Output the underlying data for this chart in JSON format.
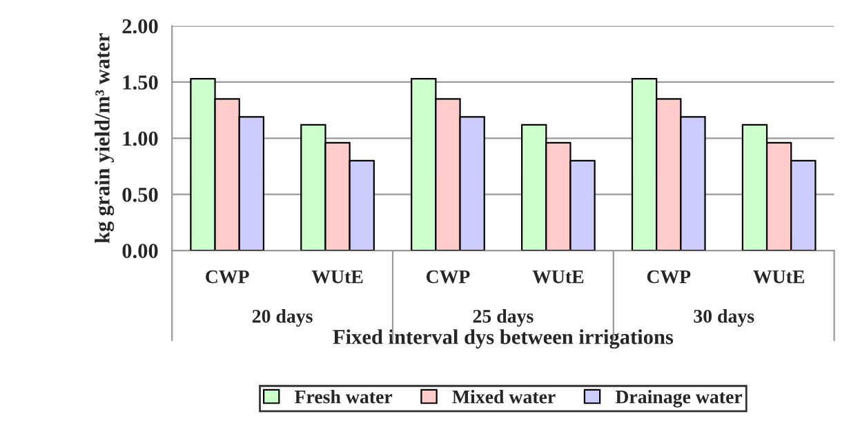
{
  "chart_data": {
    "type": "bar",
    "xlabel": "Fixed interval dys between irrigations",
    "ylabel": "kg grain yield/m³ water",
    "categories": [
      "CWP",
      "WUtE",
      "CWP",
      "WUtE",
      "CWP",
      "WUtE"
    ],
    "annotations": [
      "20 days",
      "25 days",
      "30 days"
    ],
    "series": [
      {
        "name": "Fresh water",
        "color": "#ccffcc",
        "values": [
          1.53,
          1.12,
          1.53,
          1.12,
          1.53,
          1.12
        ]
      },
      {
        "name": "Mixed water",
        "color": "#ffcccc",
        "values": [
          1.35,
          0.96,
          1.35,
          0.96,
          1.35,
          0.96
        ]
      },
      {
        "name": "Drainage water",
        "color": "#ccccff",
        "values": [
          1.19,
          0.8,
          1.19,
          0.8,
          1.19,
          0.8
        ]
      }
    ],
    "ylim": [
      0,
      2
    ],
    "yticks": [
      {
        "value": 0,
        "label": "0.00"
      },
      {
        "value": 0.5,
        "label": "0.50"
      },
      {
        "value": 1,
        "label": "1.00"
      },
      {
        "value": 1.5,
        "label": "1.50"
      },
      {
        "value": 2,
        "label": "2.00"
      }
    ],
    "grid": "y",
    "legend": "bottom"
  }
}
